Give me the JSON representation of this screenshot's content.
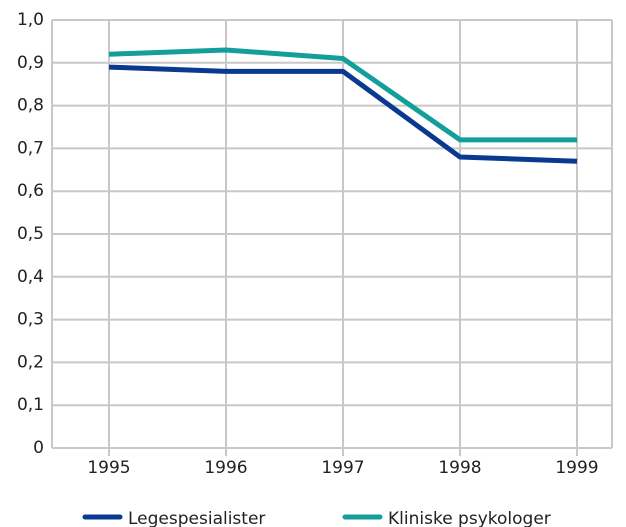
{
  "chart_data": {
    "type": "line",
    "categories": [
      "1995",
      "1996",
      "1997",
      "1998",
      "1999"
    ],
    "series": [
      {
        "name": "Legespesialister",
        "color": "#0a3a8f",
        "values": [
          0.89,
          0.88,
          0.88,
          0.68,
          0.67
        ]
      },
      {
        "name": "Kliniske psykologer",
        "color": "#129e9a",
        "values": [
          0.92,
          0.93,
          0.91,
          0.72,
          0.72
        ]
      }
    ],
    "ylim": [
      0,
      1.0
    ],
    "yticks": [
      0,
      {
        "value": 0.1,
        "label": "0,1"
      },
      {
        "value": 0.2,
        "label": "0,2"
      },
      {
        "value": 0.3,
        "label": "0,3"
      },
      {
        "value": 0.4,
        "label": "0,4"
      },
      {
        "value": 0.5,
        "label": "0,5"
      },
      {
        "value": 0.6,
        "label": "0,6"
      },
      {
        "value": 0.7,
        "label": "0,7"
      },
      {
        "value": 0.8,
        "label": "0,8"
      },
      {
        "value": 0.9,
        "label": "0,9"
      },
      {
        "value": 1.0,
        "label": "1,0"
      }
    ],
    "grid": true,
    "legend": "bottom"
  }
}
